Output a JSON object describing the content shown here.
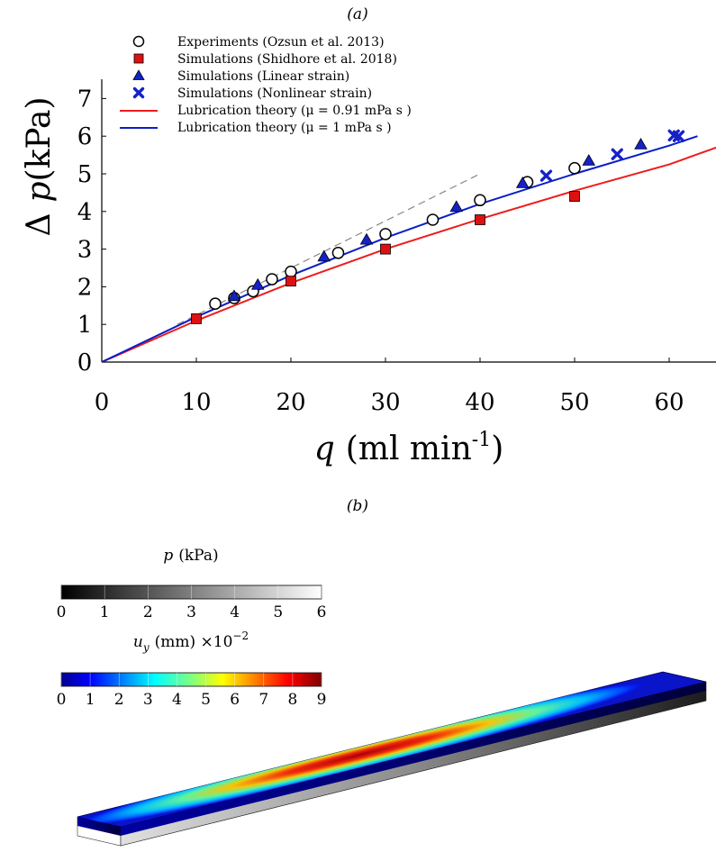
{
  "panel_a_label": "(a)",
  "panel_b_label": "(b)",
  "chart_data": {
    "type": "scatter",
    "xlabel": {
      "var": "q",
      "unit": "(ml min",
      "sup": "-1",
      "close": ")"
    },
    "ylabel": {
      "prefix": "Δ",
      "var": "p",
      "unit": "(kPa)"
    },
    "xlim": [
      0,
      65
    ],
    "ylim": [
      0,
      7.5
    ],
    "xticks": [
      0,
      10,
      20,
      30,
      40,
      50,
      60
    ],
    "yticks": [
      0,
      1,
      2,
      3,
      4,
      5,
      6,
      7
    ],
    "legend_position": "top-left",
    "series": [
      {
        "name": "Experiments (Ozsun et al. 2013)",
        "kind": "points",
        "marker": "circle",
        "color": "#ffffff",
        "stroke": "#000000",
        "x": [
          12,
          14,
          16,
          18,
          20,
          25,
          30,
          35,
          40,
          45,
          50
        ],
        "y": [
          1.55,
          1.7,
          1.88,
          2.2,
          2.4,
          2.9,
          3.4,
          3.78,
          4.3,
          4.78,
          5.15
        ]
      },
      {
        "name": "Simulations (Shidhore et al. 2018)",
        "kind": "points",
        "marker": "square",
        "color": "#dd1111",
        "stroke": "#000000",
        "x": [
          10,
          20,
          30,
          40,
          50
        ],
        "y": [
          1.15,
          2.15,
          3.0,
          3.78,
          4.4
        ]
      },
      {
        "name": "Simulations (Linear strain)",
        "kind": "points",
        "marker": "triangle",
        "color": "#1522c8",
        "stroke": "#000000",
        "x": [
          14,
          16.5,
          23.5,
          28,
          37.5,
          44.5,
          51.5,
          57
        ],
        "y": [
          1.75,
          2.05,
          2.8,
          3.25,
          4.12,
          4.75,
          5.35,
          5.78
        ]
      },
      {
        "name": "Simulations (Nonlinear strain)",
        "kind": "points",
        "marker": "cross",
        "color": "#1522c8",
        "stroke": "#1522c8",
        "x": [
          47,
          54.5,
          60.5,
          61
        ],
        "y": [
          4.95,
          5.52,
          6.02,
          6.0
        ]
      },
      {
        "name": "Lubrication theory (μ = 0.91 mPa s )",
        "kind": "line",
        "color": "#ee1c1c",
        "x": [
          0,
          10,
          20,
          30,
          40,
          50,
          60,
          65
        ],
        "y": [
          0,
          1.1,
          2.1,
          3.0,
          3.8,
          4.55,
          5.25,
          5.7
        ]
      },
      {
        "name": "Lubrication theory (μ = 1 mPa s )",
        "kind": "line",
        "color": "#0a1ec8",
        "x": [
          0,
          10,
          20,
          30,
          40,
          50,
          60,
          63
        ],
        "y": [
          0,
          1.2,
          2.3,
          3.3,
          4.2,
          5.0,
          5.75,
          6.0
        ]
      },
      {
        "kind": "line",
        "color": "#888888",
        "dashed": true,
        "x": [
          8,
          40
        ],
        "y": [
          1.0,
          5.0
        ]
      }
    ]
  },
  "colorbars": [
    {
      "title": {
        "var": "p",
        "unit": "(kPa)"
      },
      "colormap": "gray",
      "ticks": [
        "0",
        "1",
        "2",
        "3",
        "4",
        "5",
        "6"
      ]
    },
    {
      "title": {
        "var": "u",
        "sub": "y",
        "unit": "(mm) ×10",
        "sup": "−2"
      },
      "colormap": "jet",
      "ticks": [
        "0",
        "1",
        "2",
        "3",
        "4",
        "5",
        "6",
        "7",
        "8",
        "9"
      ]
    }
  ],
  "colors": {
    "jet_low": "#00008f",
    "jet_high": "#800000",
    "plate_dark": "#1a1a1a",
    "plate_light": "#c8c8c8"
  }
}
